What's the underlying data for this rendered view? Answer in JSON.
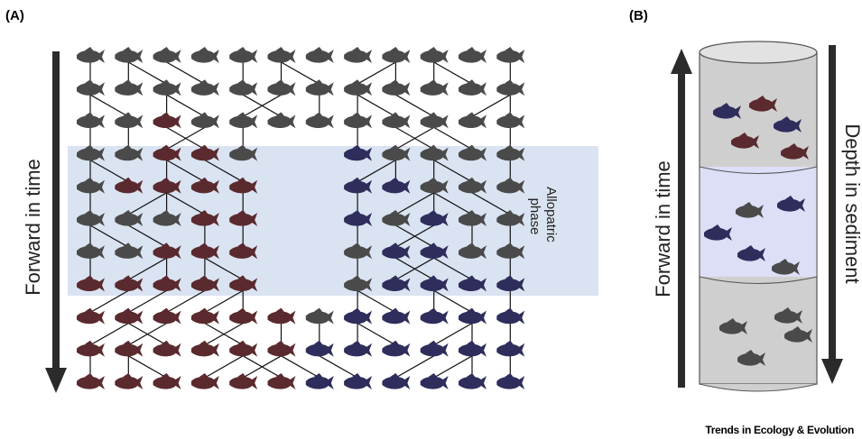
{
  "panel_a": {
    "label": "(A)",
    "axis_label": "Forward in time",
    "region_label": [
      "Allopatric",
      "phase"
    ]
  },
  "panel_b": {
    "label": "(B)",
    "left_axis_label": "Forward in time",
    "right_axis_label": "Depth in sediment"
  },
  "footer": {
    "credit": "Trends in Ecology & Evolution"
  }
}
